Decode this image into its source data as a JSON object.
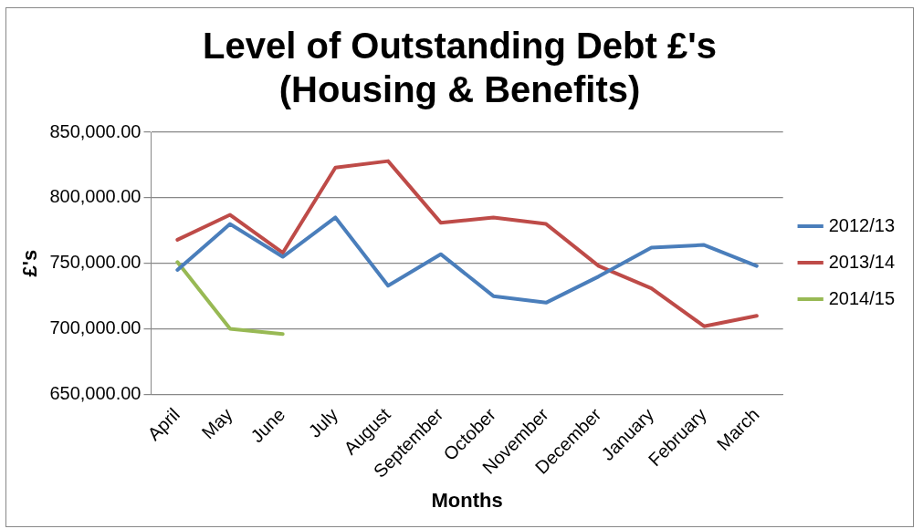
{
  "chart_data": {
    "type": "line",
    "title": [
      "Level of Outstanding Debt £'s",
      "(Housing & Benefits)"
    ],
    "xlabel": "Months",
    "ylabel": "£'s",
    "categories": [
      "April",
      "May",
      "June",
      "July",
      "August",
      "September",
      "October",
      "November",
      "December",
      "January",
      "February",
      "March"
    ],
    "series": [
      {
        "name": "2012/13",
        "color": "#4a7ebb",
        "values": [
          745000,
          780000,
          755000,
          785000,
          733000,
          757000,
          725000,
          720000,
          740000,
          762000,
          764000,
          748000
        ]
      },
      {
        "name": "2013/14",
        "color": "#be4b48",
        "values": [
          768000,
          787000,
          758000,
          823000,
          828000,
          781000,
          785000,
          780000,
          748000,
          731000,
          702000,
          710000
        ]
      },
      {
        "name": "2014/15",
        "color": "#98b954",
        "values": [
          751000,
          700000,
          696000,
          null,
          null,
          null,
          null,
          null,
          null,
          null,
          null,
          null
        ]
      }
    ],
    "ylim": [
      650000,
      850000
    ],
    "yticks": [
      {
        "value": 650000,
        "label": "650,000.00"
      },
      {
        "value": 700000,
        "label": "700,000.00"
      },
      {
        "value": 750000,
        "label": "750,000.00"
      },
      {
        "value": 800000,
        "label": "800,000.00"
      },
      {
        "value": 850000,
        "label": "850,000.00"
      }
    ],
    "grid": "y",
    "legend": "right",
    "marker": "none",
    "line_style": "solid"
  }
}
